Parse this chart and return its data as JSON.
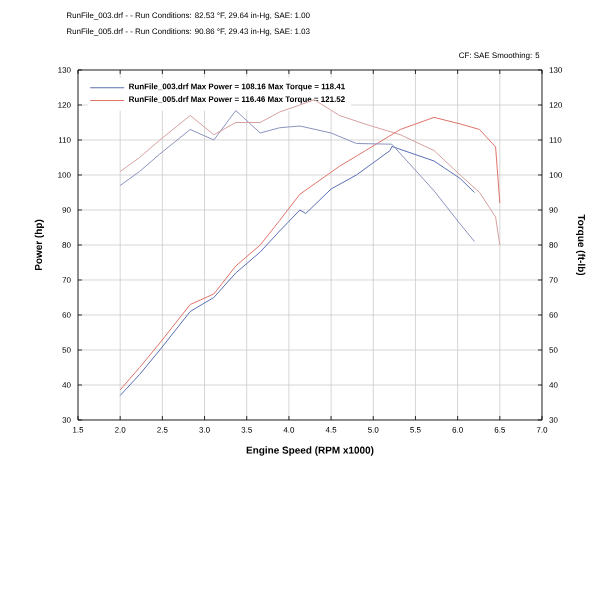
{
  "chart_data": {
    "type": "line",
    "xlabel": "Engine Speed (RPM x1000)",
    "ylabel": "Power (hp)",
    "y2label": "Torque (ft-lb)",
    "annotations": [
      "RunFile_003.drf -  - Run Conditions: 82.53 °F, 29.64 in-Hg, SAE: 1.00",
      "RunFile_005.drf -  - Run Conditions: 90.86 °F, 29.43 in-Hg, SAE: 1.03",
      "CF: SAE   Smoothing: 5"
    ],
    "xlim": [
      1.5,
      7.0
    ],
    "xticks": [
      {
        "value": 1.5,
        "label": "1.5"
      },
      {
        "value": 2.0,
        "label": "2.0"
      },
      {
        "value": 2.5,
        "label": "2.5"
      },
      {
        "value": 3.0,
        "label": "3.0"
      },
      {
        "value": 3.5,
        "label": "3.5"
      },
      {
        "value": 4.0,
        "label": "4.0"
      },
      {
        "value": 4.5,
        "label": "4.5"
      },
      {
        "value": 5.0,
        "label": "5.0"
      },
      {
        "value": 5.5,
        "label": "5.5"
      },
      {
        "value": 6.0,
        "label": "6.0"
      },
      {
        "value": 6.5,
        "label": "6.5"
      },
      {
        "value": 7.0,
        "label": "7.0"
      }
    ],
    "ylim": [
      30,
      130
    ],
    "yticks": [
      30,
      40,
      50,
      60,
      70,
      80,
      90,
      100,
      110,
      120,
      130
    ],
    "y2lim": [
      30,
      130
    ],
    "y2ticks": [
      30,
      40,
      50,
      60,
      70,
      80,
      90,
      100,
      110,
      120,
      130
    ],
    "grid": true,
    "legend": "top left",
    "series": [
      {
        "name": "RunFile_003.drf Max Power = 108.16    Max Torque = 118.41",
        "color": "#5b6fb5",
        "x": [
          2.0,
          2.23,
          2.47,
          2.83,
          3.11,
          3.37,
          3.66,
          3.89,
          4.13,
          4.2,
          4.5,
          4.8,
          5.2,
          5.22,
          5.72,
          6.03,
          6.2
        ],
        "values": [
          37,
          43,
          50,
          61,
          65,
          72,
          78,
          84,
          90,
          89,
          96,
          100,
          107,
          108.16,
          104,
          99,
          95
        ]
      },
      {
        "name": "RunFile_005.drf Max Power = 116.46    Max Torque = 121.52",
        "color": "#e0736a",
        "x": [
          2.0,
          2.23,
          2.47,
          2.83,
          3.11,
          3.37,
          3.66,
          3.89,
          4.13,
          4.6,
          4.91,
          5.32,
          5.72,
          6.03,
          6.26,
          6.45,
          6.5
        ],
        "values": [
          38.6,
          45,
          52,
          63,
          66,
          74,
          80,
          87,
          94.5,
          102.5,
          107,
          113,
          116.46,
          114.6,
          113,
          108,
          92
        ]
      },
      {
        "axis": "y2",
        "color": "#8a93c0",
        "x": [
          2.0,
          2.23,
          2.47,
          2.83,
          3.11,
          3.37,
          3.66,
          3.89,
          4.13,
          4.5,
          4.8,
          5.22,
          5.72,
          6.03,
          6.2
        ],
        "values": [
          97,
          101,
          106,
          113,
          110,
          118.41,
          112,
          113.5,
          114,
          112,
          109,
          108.8,
          95.5,
          86,
          81
        ]
      },
      {
        "axis": "y2",
        "color": "#d8a0a0",
        "x": [
          2.0,
          2.23,
          2.47,
          2.83,
          3.11,
          3.37,
          3.66,
          3.89,
          4.13,
          4.3,
          4.6,
          4.91,
          5.32,
          5.72,
          6.03,
          6.26,
          6.45,
          6.5
        ],
        "values": [
          101,
          105,
          110,
          117,
          111.5,
          115,
          115,
          118,
          120,
          121.52,
          117,
          114.5,
          111.5,
          107,
          100,
          95,
          88,
          80
        ]
      }
    ]
  }
}
